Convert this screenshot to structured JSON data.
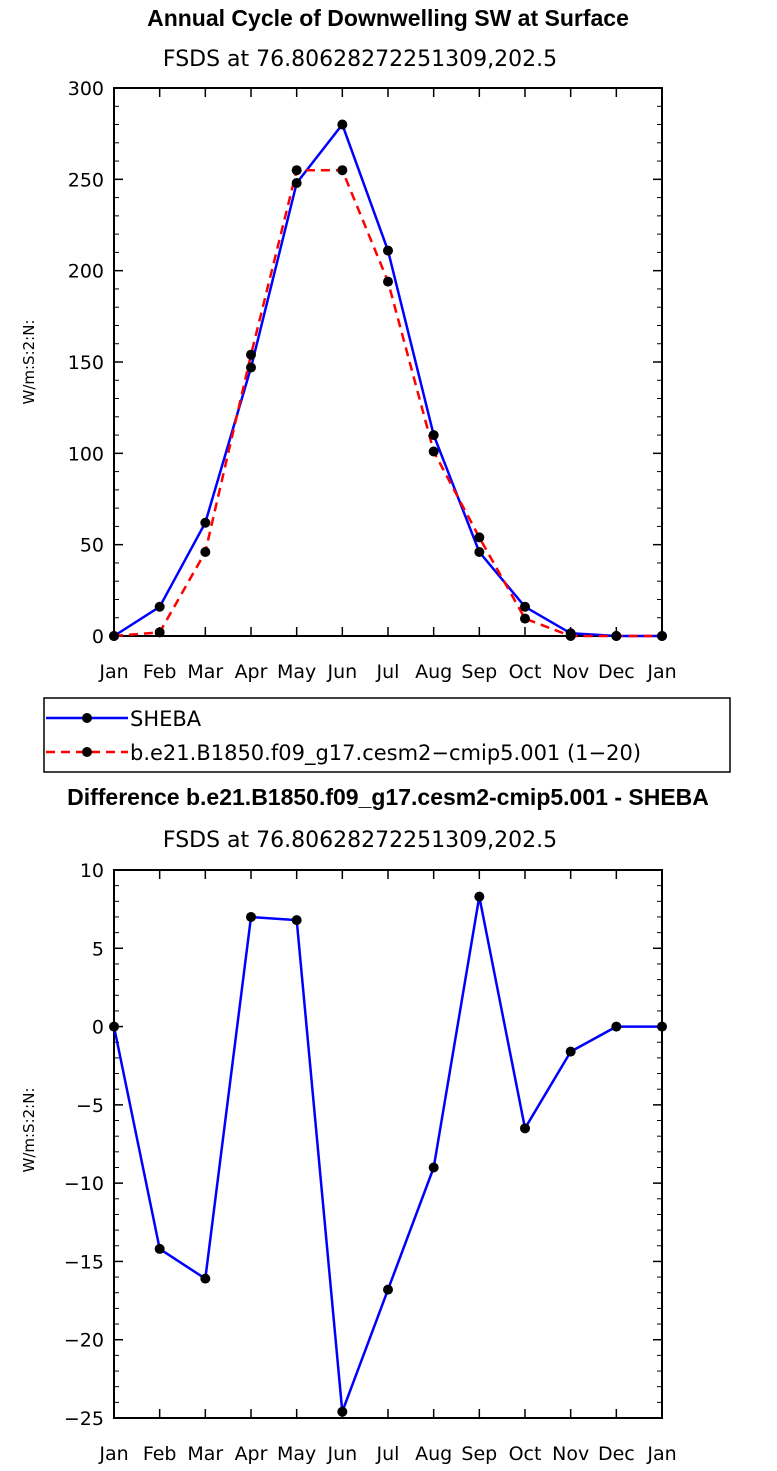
{
  "chart_data": [
    {
      "type": "line",
      "title": "Annual Cycle of Downwelling SW at Surface",
      "subtitle": "FSDS at 76.80628272251309,202.5",
      "ylabel": "W/m:S:2:N:",
      "xlabel": "",
      "categories": [
        "Jan",
        "Feb",
        "Mar",
        "Apr",
        "May",
        "Jun",
        "Jul",
        "Aug",
        "Sep",
        "Oct",
        "Nov",
        "Dec",
        "Jan"
      ],
      "ylim": [
        0,
        300
      ],
      "yticks": [
        "0",
        "50",
        "100",
        "150",
        "200",
        "250",
        "300"
      ],
      "series": [
        {
          "name": "SHEBA",
          "color": "#0000ff",
          "dash": "solid",
          "values": [
            0,
            16,
            62,
            147,
            248,
            280,
            211,
            110,
            46,
            16,
            1.5,
            0,
            0
          ]
        },
        {
          "name": "b.e21.B1850.f09_g17.cesm2−cmip5.001 (1−20)",
          "color": "#ff0000",
          "dash": "dashed",
          "values": [
            0,
            2,
            46,
            154,
            255,
            255,
            194,
            101,
            54,
            9.5,
            0,
            0,
            0
          ]
        }
      ]
    },
    {
      "type": "line",
      "title": "Difference b.e21.B1850.f09_g17.cesm2-cmip5.001 - SHEBA",
      "subtitle": "FSDS at 76.80628272251309,202.5",
      "ylabel": "W/m:S:2:N:",
      "xlabel": "",
      "categories": [
        "Jan",
        "Feb",
        "Mar",
        "Apr",
        "May",
        "Jun",
        "Jul",
        "Aug",
        "Sep",
        "Oct",
        "Nov",
        "Dec",
        "Jan"
      ],
      "ylim": [
        -25,
        10
      ],
      "yticks": [
        "−25",
        "−20",
        "−15",
        "−10",
        "−5",
        "0",
        "5",
        "10"
      ],
      "series": [
        {
          "name": "Difference",
          "color": "#0000ff",
          "dash": "solid",
          "values": [
            0,
            -14.2,
            -16.1,
            7.0,
            6.8,
            -24.6,
            -16.8,
            -9.0,
            8.3,
            -6.5,
            -1.6,
            0,
            0
          ]
        }
      ]
    }
  ]
}
